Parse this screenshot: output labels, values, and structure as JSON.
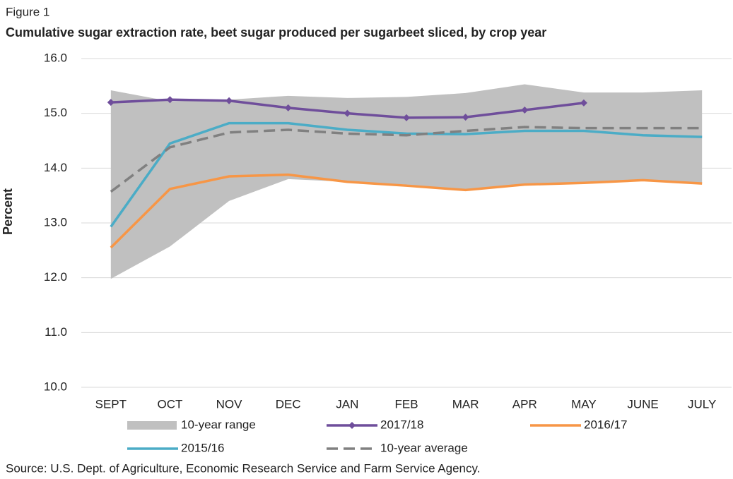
{
  "chart_data": {
    "type": "line",
    "figure_label": "Figure 1",
    "title": "Cumulative sugar extraction rate, beet sugar produced per sugarbeet sliced, by crop year",
    "y_label": "Percent",
    "source": "Source: U.S. Dept. of Agriculture, Economic Research Service and Farm Service Agency.",
    "categories": [
      "SEPT",
      "OCT",
      "NOV",
      "DEC",
      "JAN",
      "FEB",
      "MAR",
      "APR",
      "MAY",
      "JUNE",
      "JULY"
    ],
    "ylim": [
      10,
      16
    ],
    "yticks": [
      {
        "value": 10,
        "label": "10.0"
      },
      {
        "value": 11,
        "label": "11.0"
      },
      {
        "value": 12,
        "label": "12.0"
      },
      {
        "value": 13,
        "label": "13.0"
      },
      {
        "value": 14,
        "label": "14.0"
      },
      {
        "value": 15,
        "label": "15.0"
      },
      {
        "value": 16,
        "label": "16.0"
      }
    ],
    "grid": true,
    "range": {
      "name": "10-year range",
      "color": "#c0c0c0",
      "high": [
        15.42,
        15.22,
        15.25,
        15.32,
        15.28,
        15.3,
        15.37,
        15.53,
        15.38,
        15.38,
        15.42
      ],
      "low": [
        11.98,
        12.57,
        13.4,
        13.8,
        13.75,
        13.7,
        13.6,
        13.7,
        13.72,
        13.78,
        13.72
      ]
    },
    "series": [
      {
        "name": "2017/18",
        "color": "#6f4e9b",
        "markers": true,
        "values": [
          15.2,
          15.25,
          15.23,
          15.1,
          15.0,
          14.92,
          14.93,
          15.06,
          15.19,
          null,
          null
        ]
      },
      {
        "name": "2016/17",
        "color": "#f79646",
        "values": [
          12.55,
          13.62,
          13.85,
          13.88,
          13.75,
          13.68,
          13.6,
          13.7,
          13.73,
          13.78,
          13.72
        ]
      },
      {
        "name": "2015/16",
        "color": "#4bacc6",
        "values": [
          12.93,
          14.45,
          14.82,
          14.82,
          14.7,
          14.63,
          14.62,
          14.68,
          14.68,
          14.6,
          14.57
        ]
      },
      {
        "name": "10-year average",
        "color": "#808080",
        "dashed": true,
        "values": [
          13.57,
          14.38,
          14.65,
          14.7,
          14.63,
          14.6,
          14.68,
          14.75,
          14.73,
          14.73,
          14.73
        ]
      }
    ]
  }
}
